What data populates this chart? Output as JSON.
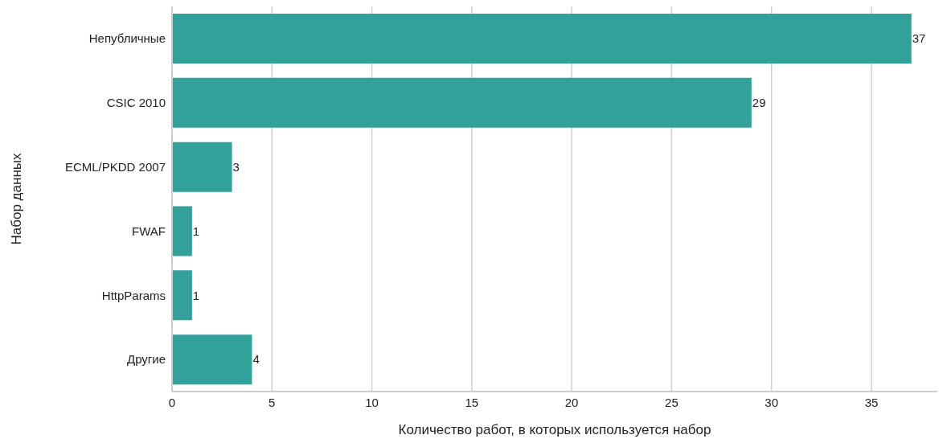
{
  "chart_data": {
    "type": "bar",
    "orientation": "horizontal",
    "xlabel": "Количество работ, в которых используется набор",
    "ylabel": "Набор данных",
    "categories": [
      "Непубличные",
      "CSIC 2010",
      "ECML/PKDD 2007",
      "FWAF",
      "HttpParams",
      "Другие"
    ],
    "values": [
      37,
      29,
      3,
      1,
      1,
      4
    ],
    "color": "#31a19a",
    "xlim": [
      0,
      38.3
    ],
    "xticks": [
      0,
      5,
      10,
      15,
      20,
      25,
      30,
      35
    ],
    "grid": "x",
    "data_labels": true
  }
}
